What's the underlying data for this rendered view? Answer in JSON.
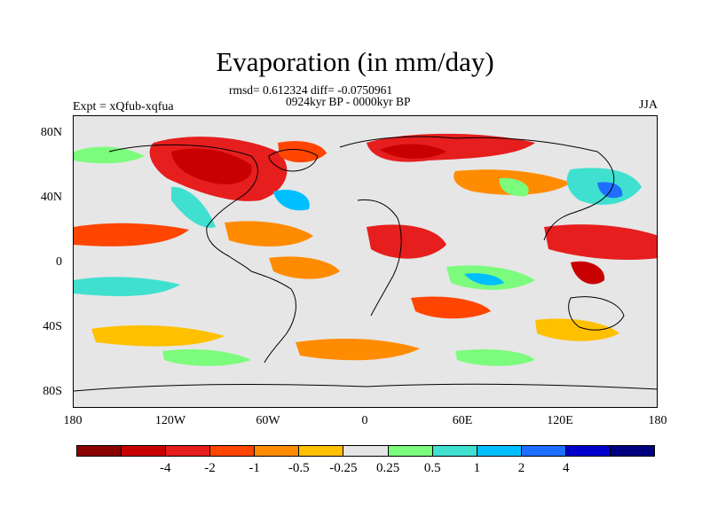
{
  "title": "Evaporation (in mm/day)",
  "stats_line": "rmsd= 0.612324 diff= -0.0750961",
  "period_line": "0924kyr BP - 0000kyr BP",
  "experiment_label": "Expt = xQfub-xqfua",
  "season_label": "JJA",
  "lat_labels": [
    "80N",
    "40N",
    "0",
    "40S",
    "80S"
  ],
  "lon_labels": [
    "180",
    "120W",
    "60W",
    "0",
    "60E",
    "120E",
    "180"
  ],
  "colorbar": {
    "labels": [
      "-4",
      "-2",
      "-1",
      "-0.5",
      "-0.25",
      "0.25",
      "0.5",
      "1",
      "2",
      "4"
    ],
    "colors": [
      "#8b0000",
      "#c80000",
      "#e61e1e",
      "#ff4500",
      "#ff8c00",
      "#ffc000",
      "#e6e6e6",
      "#7cfc7c",
      "#40e0d0",
      "#00bfff",
      "#1e6fff",
      "#0000cd",
      "#000080"
    ]
  }
}
